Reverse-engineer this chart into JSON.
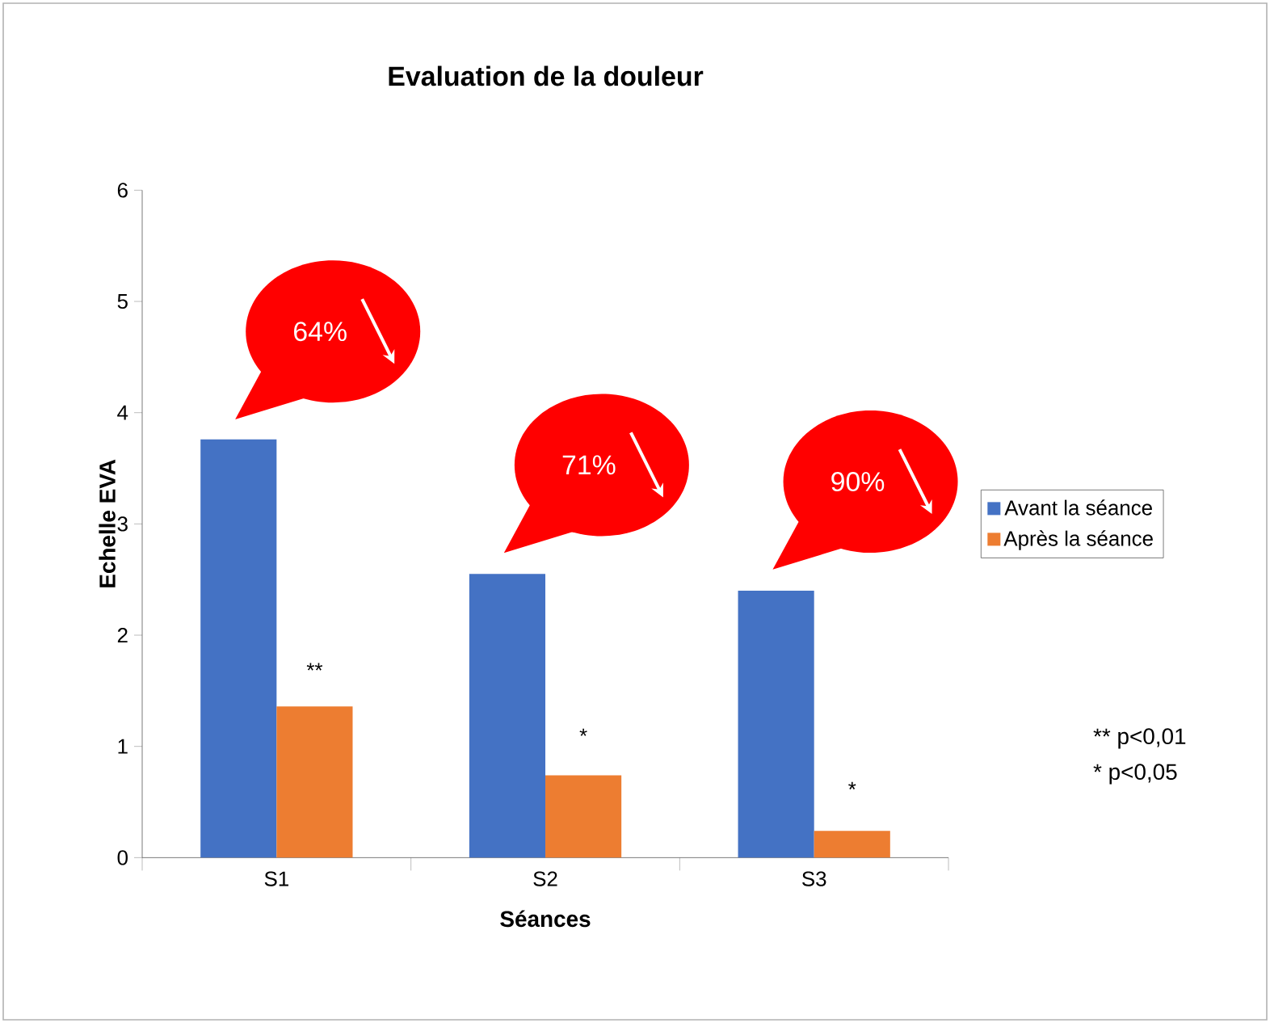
{
  "chart_data": {
    "type": "bar",
    "title": "Evaluation de la douleur",
    "xlabel": "Séances",
    "ylabel": "Echelle EVA",
    "categories": [
      "S1",
      "S2",
      "S3"
    ],
    "series": [
      {
        "name": "Avant la séance",
        "color": "#4472c4",
        "values": [
          3.76,
          2.55,
          2.4
        ]
      },
      {
        "name": "Après la séance",
        "color": "#ed7d31",
        "values": [
          1.36,
          0.74,
          0.24
        ]
      }
    ],
    "ylim": [
      0,
      6
    ],
    "yticks": [
      0,
      1,
      2,
      3,
      4,
      5,
      6
    ],
    "grid": false,
    "legend": "right",
    "annotations": [
      "64%",
      "71%",
      "90%",
      {
        "text": "**",
        "x": "S1",
        "y": 1.62
      },
      {
        "text": "*",
        "x": "S2",
        "y": 1.03
      },
      {
        "text": "*",
        "x": "S3",
        "y": 0.55
      },
      "** p<0,01",
      "* p<0,05"
    ]
  }
}
